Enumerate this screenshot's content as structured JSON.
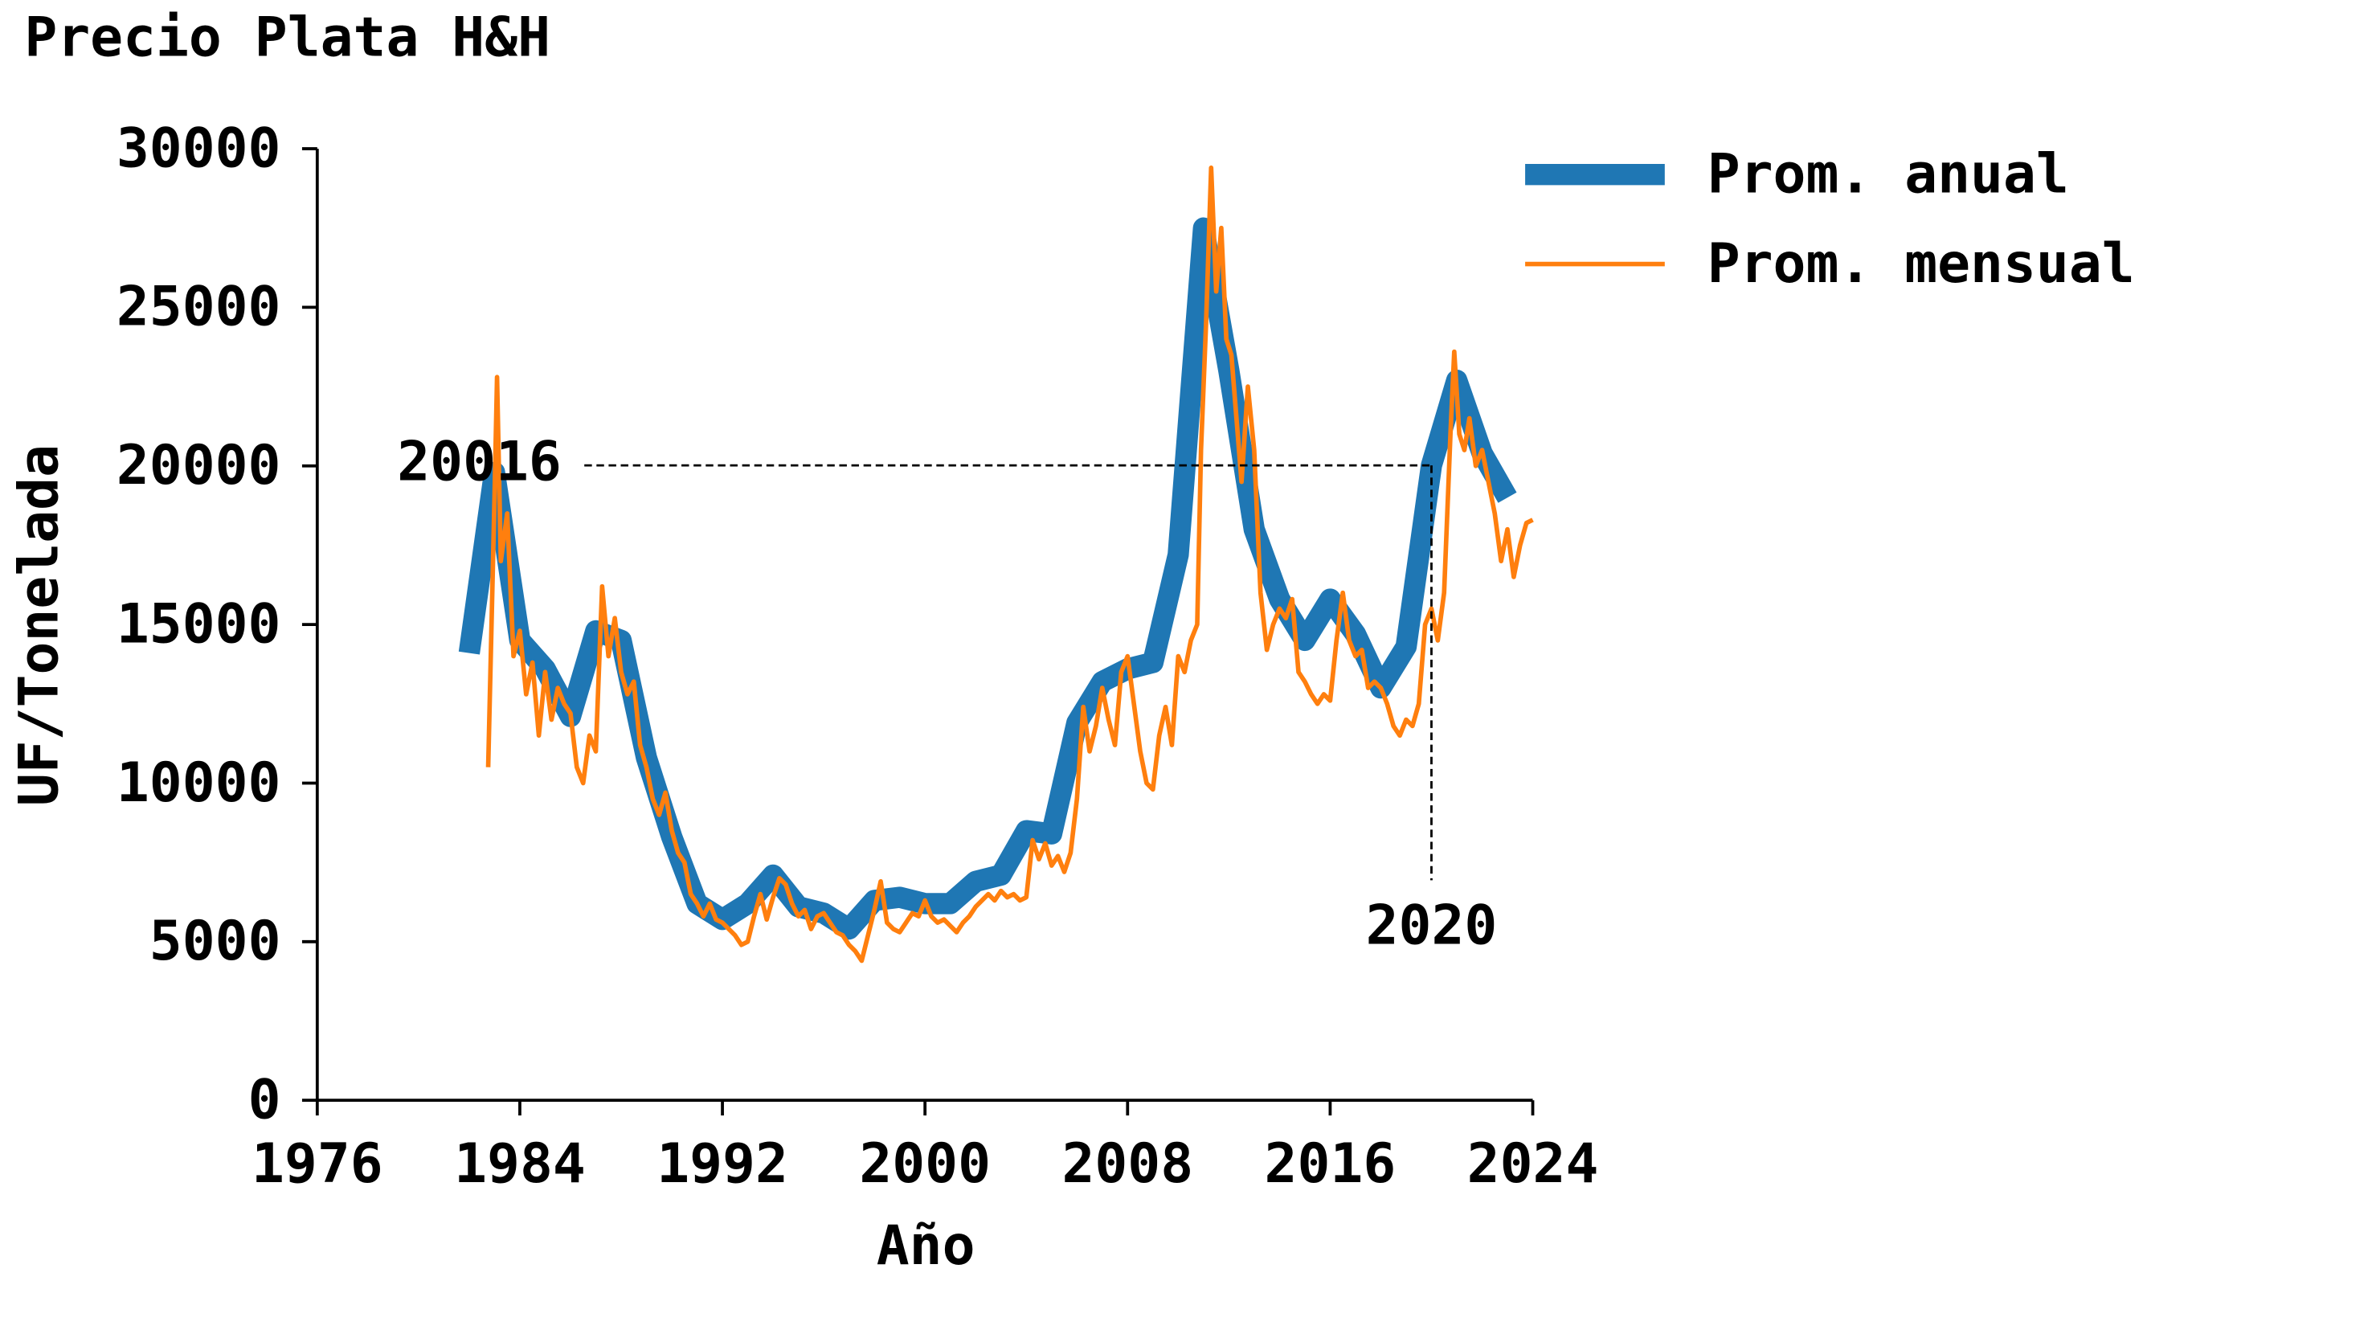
{
  "chart_data": {
    "type": "line",
    "title": "Precio Plata H&H",
    "xlabel": "Año",
    "ylabel": "UF/Tonelada",
    "xlim": [
      1976,
      2024
    ],
    "xticks": [
      1976,
      1984,
      1992,
      2000,
      2008,
      2016,
      2024
    ],
    "ylim": [
      0,
      30000
    ],
    "yticks": [
      0,
      5000,
      10000,
      15000,
      20000,
      25000,
      30000
    ],
    "legend": "upper right",
    "grid": false,
    "annotation": {
      "x": 2020,
      "y": 20016
    },
    "series": [
      {
        "name": "Prom. anual",
        "color": "#1f77b4",
        "width": 14,
        "x": [
          1982,
          1983,
          1984,
          1985,
          1986,
          1987,
          1988,
          1989,
          1990,
          1991,
          1992,
          1993,
          1994,
          1995,
          1996,
          1997,
          1998,
          1999,
          2000,
          2001,
          2002,
          2003,
          2004,
          2005,
          2006,
          2007,
          2008,
          2009,
          2010,
          2011,
          2012,
          2013,
          2014,
          2015,
          2016,
          2017,
          2018,
          2019,
          2020,
          2021,
          2022,
          2023
        ],
        "values": [
          14100,
          19800,
          14500,
          13600,
          12100,
          14800,
          14500,
          10800,
          8300,
          6200,
          5700,
          6200,
          7100,
          6100,
          5900,
          5400,
          6300,
          6400,
          6200,
          6200,
          6900,
          7100,
          8500,
          8400,
          11900,
          13200,
          13600,
          13800,
          17200,
          27500,
          23000,
          18000,
          15800,
          14500,
          15800,
          14700,
          13000,
          14300,
          20016,
          22700,
          20400,
          19000
        ]
      },
      {
        "name": "Prom. mensual",
        "color": "#ff7f0e",
        "width": 3,
        "x": [
          1982.75,
          1983.0,
          1983.1,
          1983.25,
          1983.5,
          1983.75,
          1984.0,
          1984.25,
          1984.5,
          1984.75,
          1985.0,
          1985.25,
          1985.5,
          1985.75,
          1986.0,
          1986.25,
          1986.5,
          1986.75,
          1987.0,
          1987.25,
          1987.5,
          1987.75,
          1988.0,
          1988.25,
          1988.5,
          1988.75,
          1989.0,
          1989.25,
          1989.5,
          1989.75,
          1990.0,
          1990.25,
          1990.5,
          1990.75,
          1991.0,
          1991.25,
          1991.5,
          1991.75,
          1992.0,
          1992.25,
          1992.5,
          1992.75,
          1993.0,
          1993.25,
          1993.5,
          1993.75,
          1994.0,
          1994.25,
          1994.5,
          1994.75,
          1995.0,
          1995.25,
          1995.5,
          1995.75,
          1996.0,
          1996.25,
          1996.5,
          1996.75,
          1997.0,
          1997.25,
          1997.5,
          1997.75,
          1998.0,
          1998.25,
          1998.5,
          1998.75,
          1999.0,
          1999.25,
          1999.5,
          1999.75,
          2000.0,
          2000.25,
          2000.5,
          2000.75,
          2001.0,
          2001.25,
          2001.5,
          2001.75,
          2002.0,
          2002.25,
          2002.5,
          2002.75,
          2003.0,
          2003.25,
          2003.5,
          2003.75,
          2004.0,
          2004.25,
          2004.5,
          2004.75,
          2005.0,
          2005.25,
          2005.5,
          2005.75,
          2006.0,
          2006.25,
          2006.5,
          2006.75,
          2007.0,
          2007.25,
          2007.5,
          2007.75,
          2008.0,
          2008.25,
          2008.5,
          2008.75,
          2009.0,
          2009.25,
          2009.5,
          2009.75,
          2010.0,
          2010.25,
          2010.5,
          2010.75,
          2010.9,
          2011.1,
          2011.3,
          2011.5,
          2011.7,
          2011.9,
          2012.1,
          2012.3,
          2012.5,
          2012.75,
          2013.0,
          2013.25,
          2013.5,
          2013.75,
          2014.0,
          2014.25,
          2014.5,
          2014.75,
          2015.0,
          2015.25,
          2015.5,
          2015.75,
          2016.0,
          2016.25,
          2016.5,
          2016.75,
          2017.0,
          2017.25,
          2017.5,
          2017.75,
          2018.0,
          2018.25,
          2018.5,
          2018.75,
          2019.0,
          2019.25,
          2019.5,
          2019.75,
          2020.0,
          2020.25,
          2020.5,
          2020.75,
          2020.9,
          2021.1,
          2021.3,
          2021.5,
          2021.75,
          2022.0,
          2022.25,
          2022.5,
          2022.75,
          2023.0,
          2023.25,
          2023.5,
          2023.75,
          2024.0
        ],
        "values": [
          10500,
          19000,
          22800,
          17000,
          18500,
          14000,
          14800,
          12800,
          13800,
          11500,
          13500,
          12000,
          13000,
          12500,
          12200,
          10500,
          10000,
          11500,
          11000,
          16200,
          14000,
          15200,
          13500,
          12800,
          13200,
          11200,
          10500,
          9500,
          9000,
          9700,
          8500,
          7800,
          7500,
          6500,
          6200,
          5800,
          6200,
          5700,
          5600,
          5400,
          5200,
          4900,
          5000,
          5800,
          6500,
          5700,
          6400,
          7000,
          6800,
          6200,
          5800,
          6000,
          5400,
          5800,
          5900,
          5600,
          5300,
          5200,
          4900,
          4700,
          4400,
          5200,
          6000,
          6900,
          5600,
          5400,
          5300,
          5600,
          5900,
          5800,
          6300,
          5800,
          5600,
          5700,
          5500,
          5300,
          5600,
          5800,
          6100,
          6300,
          6500,
          6300,
          6600,
          6400,
          6500,
          6300,
          6400,
          8200,
          7600,
          8100,
          7400,
          7700,
          7200,
          7800,
          9500,
          12400,
          11000,
          11800,
          13000,
          12000,
          11200,
          13500,
          14000,
          12500,
          11000,
          10000,
          9800,
          11500,
          12400,
          11200,
          14000,
          13500,
          14500,
          15000,
          20500,
          24500,
          29400,
          25500,
          27500,
          24000,
          23500,
          21500,
          19500,
          22500,
          20500,
          16000,
          14200,
          15000,
          15500,
          15200,
          15800,
          13500,
          13200,
          12800,
          12500,
          12800,
          12600,
          14500,
          16000,
          14500,
          14000,
          14200,
          13000,
          13200,
          13000,
          12500,
          11800,
          11500,
          12000,
          11800,
          12500,
          15000,
          15500,
          14500,
          16000,
          21000,
          23600,
          21000,
          20500,
          21500,
          20000,
          20500,
          19500,
          18500,
          17000,
          18000,
          16500,
          17500,
          18200,
          18300
        ]
      }
    ]
  }
}
